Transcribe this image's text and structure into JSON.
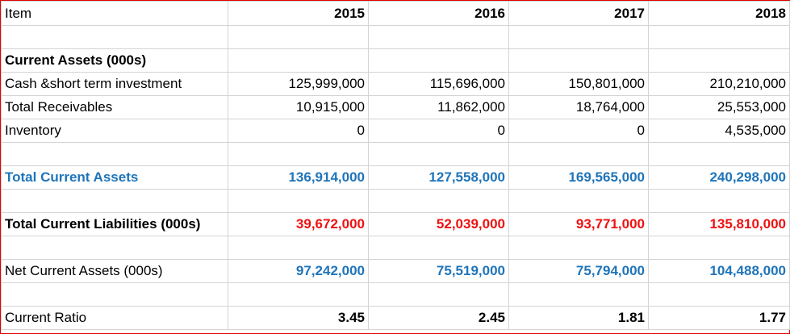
{
  "header": {
    "item": "Item",
    "years": [
      "2015",
      "2016",
      "2017",
      "2018"
    ]
  },
  "current_assets": {
    "section_label": "Current Assets (000s)",
    "cash": {
      "label": "Cash &short term investment",
      "values": [
        "125,999,000",
        "115,696,000",
        "150,801,000",
        "210,210,000"
      ]
    },
    "receivables": {
      "label": "Total Receivables",
      "values": [
        "10,915,000",
        "11,862,000",
        "18,764,000",
        "25,553,000"
      ]
    },
    "inventory": {
      "label": "Inventory",
      "values": [
        "0",
        "0",
        "0",
        "4,535,000"
      ]
    }
  },
  "total_current_assets": {
    "label": "Total Current Assets",
    "values": [
      "136,914,000",
      "127,558,000",
      "169,565,000",
      "240,298,000"
    ]
  },
  "total_current_liabilities": {
    "label": "Total Current Liabilities (000s)",
    "values": [
      "39,672,000",
      "52,039,000",
      "93,771,000",
      "135,810,000"
    ]
  },
  "net_current_assets": {
    "label": "Net Current Assets (000s)",
    "values": [
      "97,242,000",
      "75,519,000",
      "75,794,000",
      "104,488,000"
    ]
  },
  "current_ratio": {
    "label": "Current Ratio",
    "values": [
      "3.45",
      "2.45",
      "1.81",
      "1.77"
    ]
  },
  "colors": {
    "blue": "#1f74b9",
    "red": "#ee1111",
    "border": "#e00000"
  }
}
